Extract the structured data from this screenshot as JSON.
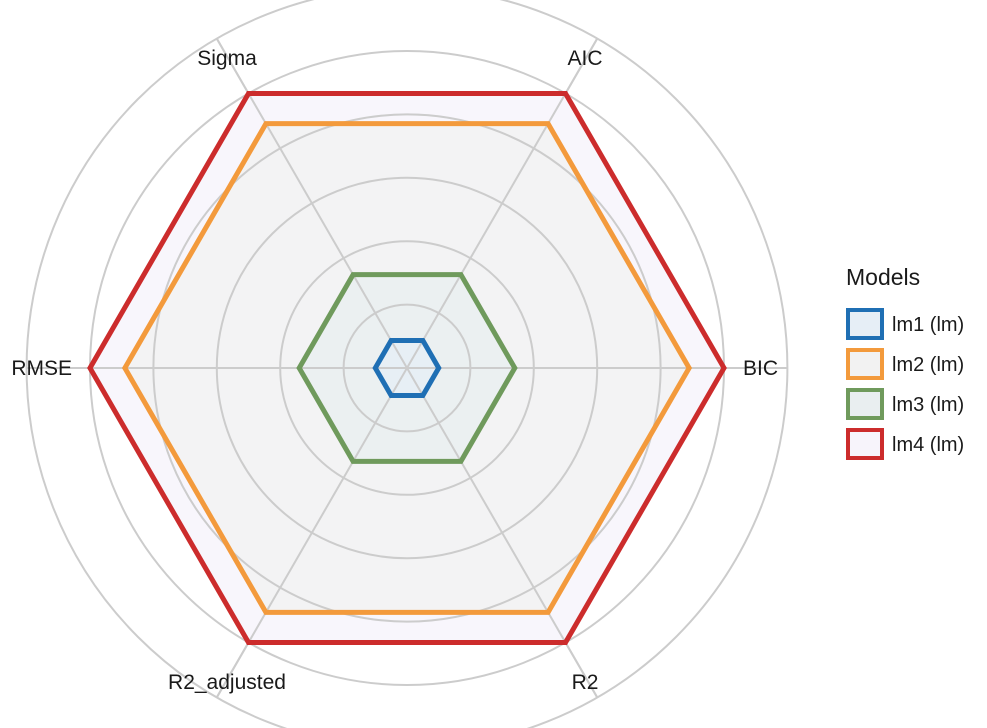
{
  "chart_data": {
    "type": "radar",
    "axes": [
      "BIC",
      "AIC",
      "Sigma",
      "RMSE",
      "R2_adjusted",
      "R2"
    ],
    "rlim": [
      0,
      1
    ],
    "grid_rings": [
      0.2,
      0.4,
      0.6,
      0.8,
      1.0,
      1.2
    ],
    "grid": true,
    "legend_position": "right",
    "legend_title": "Models",
    "series": [
      {
        "name": "lm1 (lm)",
        "color": "#1f6fb4",
        "fill": "#e6eef6",
        "values": [
          0.1,
          0.1,
          0.1,
          0.1,
          0.1,
          0.1
        ]
      },
      {
        "name": "lm2 (lm)",
        "color": "#f39a3c",
        "fill": "#f2f2f2",
        "values": [
          0.89,
          0.89,
          0.89,
          0.89,
          0.89,
          0.89
        ]
      },
      {
        "name": "lm3 (lm)",
        "color": "#6f9a5c",
        "fill": "#e9eef0",
        "values": [
          0.34,
          0.34,
          0.34,
          0.34,
          0.34,
          0.34
        ]
      },
      {
        "name": "lm4 (lm)",
        "color": "#cc2c2c",
        "fill": "#f7f4fb",
        "values": [
          1.0,
          1.0,
          1.0,
          1.0,
          1.0,
          1.0
        ]
      }
    ],
    "draw_order": [
      3,
      1,
      2,
      0
    ]
  }
}
